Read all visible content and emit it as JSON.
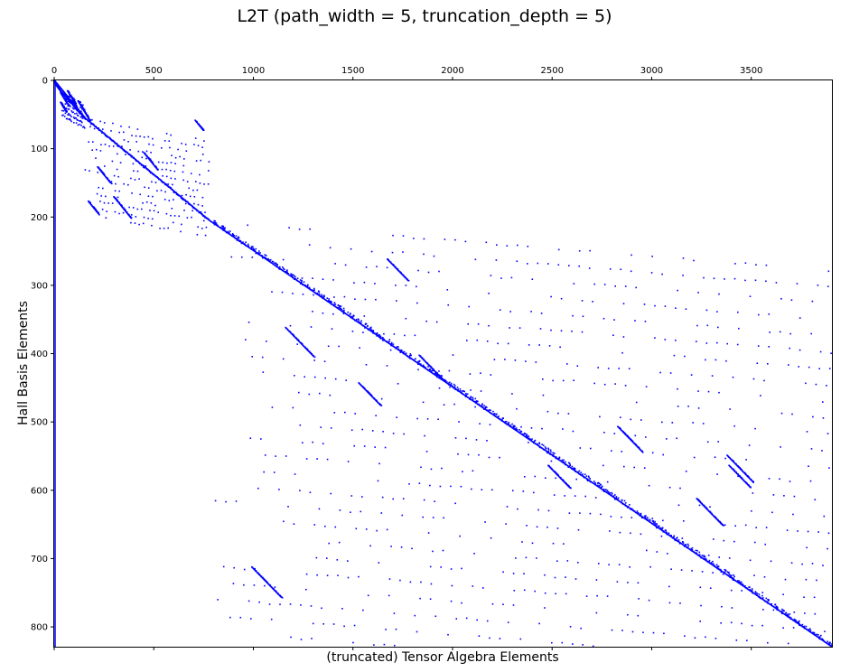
{
  "chart_data": {
    "type": "scatter",
    "plot_kind": "sparsity-pattern",
    "title": "L2T (path_width = 5, truncation_depth = 5)",
    "xlabel": "(truncated) Tensor Algebra Elements",
    "ylabel": "Hall Basis Elements",
    "x_axis_position": "top",
    "y_inverted": true,
    "xlim": [
      0,
      3905
    ],
    "ylim": [
      0,
      829
    ],
    "xticks": [
      0,
      500,
      1000,
      1500,
      2000,
      2500,
      3000,
      3500
    ],
    "yticks": [
      0,
      100,
      200,
      300,
      400,
      500,
      600,
      700,
      800
    ],
    "marker_color": "#0000ff",
    "grid": false,
    "legend": "none",
    "blocks": [
      {
        "row_start": 0,
        "row_end": 5,
        "col_start": 0,
        "col_end": 5,
        "level": 1
      },
      {
        "row_start": 5,
        "row_end": 15,
        "col_start": 5,
        "col_end": 30,
        "level": 2
      },
      {
        "row_start": 15,
        "row_end": 55,
        "col_start": 30,
        "col_end": 155,
        "level": 3
      },
      {
        "row_start": 55,
        "row_end": 205,
        "col_start": 155,
        "col_end": 780,
        "level": 4
      },
      {
        "row_start": 205,
        "row_end": 829,
        "col_start": 780,
        "col_end": 3905,
        "level": 5
      }
    ]
  }
}
